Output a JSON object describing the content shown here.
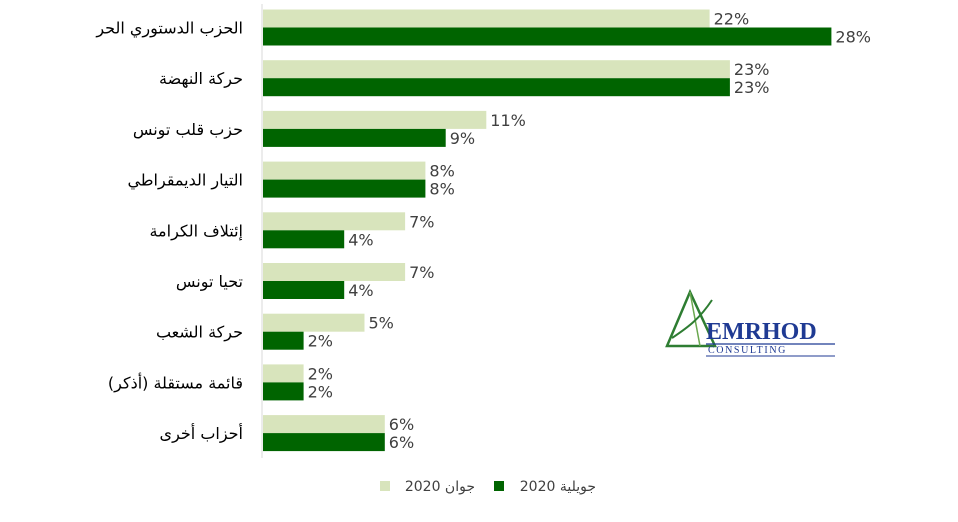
{
  "chart_data": {
    "type": "bar",
    "orientation": "horizontal",
    "categories": [
      "الحزب الدستوري الحر",
      "حركة النهضة",
      "حزب قلب تونس",
      "التيار الديمقراطي",
      "إئتلاف الكرامة",
      "تحيا تونس",
      "حركة الشعب",
      "قائمة مستقلة (أذكر)",
      "أحزاب أخرى"
    ],
    "series": [
      {
        "name": "جوان 2020",
        "color": "#d8e4bc",
        "values": [
          22,
          23,
          11,
          8,
          7,
          7,
          5,
          2,
          6
        ],
        "labels": [
          "22%",
          "23%",
          "11%",
          "8%",
          "7%",
          "7%",
          "5%",
          "2%",
          "6%"
        ]
      },
      {
        "name": "جويلية 2020",
        "color": "#006400",
        "values": [
          28,
          23,
          9,
          8,
          4,
          4,
          2,
          2,
          6
        ],
        "labels": [
          "28%",
          "23%",
          "9%",
          "8%",
          "4%",
          "4%",
          "2%",
          "2%",
          "6%"
        ]
      }
    ],
    "value_unit": "%",
    "xlim": [
      0,
      30
    ],
    "grid": false,
    "legend_position": "bottom"
  },
  "logo": {
    "name": "EMRHOD",
    "tagline": "CONSULTING",
    "icon": "triangle-logo-icon",
    "colors": {
      "green": "#2e7d32",
      "blue": "#1f3a93"
    }
  }
}
